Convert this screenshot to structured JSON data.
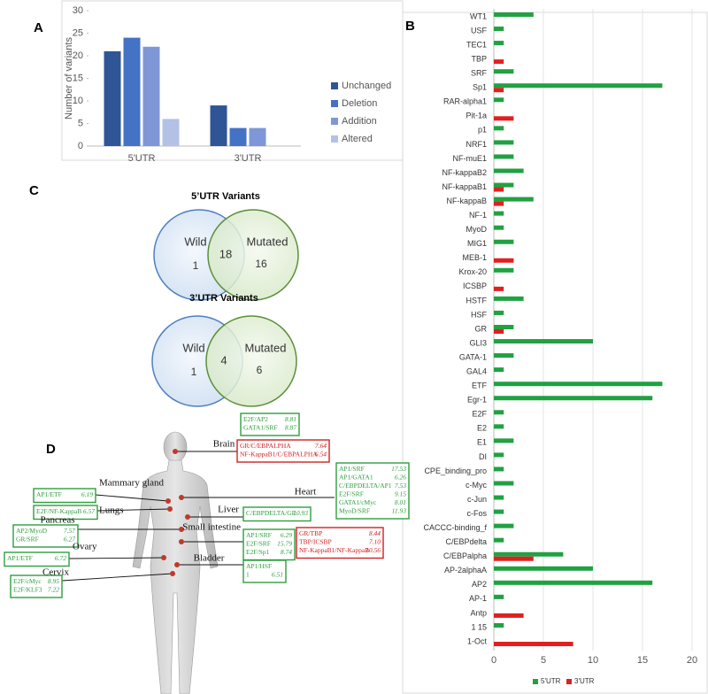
{
  "panel_labels": [
    "A",
    "B",
    "C",
    "D"
  ],
  "chart_data": [
    {
      "type": "bar",
      "y_label": "Number of variants",
      "categories": [
        "5'UTR",
        "3'UTR"
      ],
      "series": [
        {
          "name": "Unchanged",
          "color": "#2f5597",
          "values": [
            21,
            9
          ]
        },
        {
          "name": "Deletion",
          "color": "#4472c4",
          "values": [
            24,
            4
          ]
        },
        {
          "name": "Addition",
          "color": "#7f97d6",
          "values": [
            22,
            4
          ]
        },
        {
          "name": "Altered",
          "color": "#b4c1e6",
          "values": [
            6,
            null
          ]
        }
      ],
      "ylim": [
        0,
        30
      ],
      "yticks": [
        0,
        5,
        10,
        15,
        20,
        25,
        30
      ]
    },
    {
      "type": "hbar",
      "categories": [
        "WT1",
        "USF",
        "TEC1",
        "TBP",
        "SRF",
        "Sp1",
        "RAR-alpha1",
        "Pit-1a",
        "p1",
        "NRF1",
        "NF-muE1",
        "NF-kappaB2",
        "NF-kappaB1",
        "NF-kappaB",
        "NF-1",
        "MyoD",
        "MIG1",
        "MEB-1",
        "Krox-20",
        "ICSBP",
        "HSTF",
        "HSF",
        "GR",
        "GLI3",
        "GATA-1",
        "GAL4",
        "ETF",
        "Egr-1",
        "E2F",
        "E2",
        "E1",
        "DI",
        "CPE_binding_pro",
        "c-Myc",
        "c-Jun",
        "c-Fos",
        "CACCC-binding_f",
        "C/EBPdelta",
        "C/EBPalpha",
        "AP-2alphaA",
        "AP2",
        "AP-1",
        "Antp",
        "1 15",
        "1-Oct"
      ],
      "series": [
        {
          "name": "5'UTR",
          "color": "#21a142",
          "values": [
            4,
            1,
            1,
            null,
            2,
            17,
            1,
            null,
            1,
            2,
            2,
            3,
            2,
            4,
            1,
            1,
            2,
            null,
            2,
            null,
            3,
            1,
            2,
            10,
            2,
            1,
            17,
            16,
            1,
            1,
            2,
            1,
            1,
            2,
            1,
            1,
            2,
            1,
            7,
            10,
            16,
            1,
            null,
            1,
            null
          ]
        },
        {
          "name": "3'UTR",
          "color": "#e02020",
          "values": [
            null,
            null,
            null,
            1,
            null,
            1,
            null,
            2,
            null,
            null,
            null,
            null,
            1,
            1,
            null,
            null,
            null,
            2,
            null,
            1,
            null,
            null,
            1,
            null,
            null,
            null,
            null,
            null,
            null,
            null,
            null,
            null,
            null,
            null,
            null,
            null,
            null,
            null,
            4,
            null,
            null,
            null,
            3,
            null,
            8
          ]
        }
      ],
      "xlim": [
        0,
        20
      ],
      "xticks": [
        0,
        5,
        10,
        15,
        20
      ],
      "grid": true
    }
  ],
  "venn": [
    {
      "title": "5’UTR Variants",
      "left_label": "Wild",
      "right_label": "Mutated",
      "left_only": 1,
      "both": 18,
      "right_only": 16
    },
    {
      "title": "3’UTR Variants",
      "left_label": "Wild",
      "right_label": "Mutated",
      "left_only": 1,
      "both": 4,
      "right_only": 6
    }
  ],
  "body_map": {
    "organs": [
      {
        "name": "Brain",
        "boxes": [
          {
            "color": "#2e9e3e",
            "rows": [
              {
                "name": "E2F/AP2",
                "score": "8.81"
              },
              {
                "name": "GATA1/SRF",
                "score": "8.87"
              }
            ]
          },
          {
            "color": "#d42020",
            "rows": [
              {
                "name": "GR/C/EBPALPHA",
                "score": "7.64"
              },
              {
                "name": "NF-KappaB1/C/EBPALPHA",
                "score": "6.54"
              }
            ]
          }
        ]
      },
      {
        "name": "Heart",
        "boxes": [
          {
            "color": "#2e9e3e",
            "rows": [
              {
                "name": "AP1/SRF",
                "score": "17.53"
              },
              {
                "name": "AP1/GATA1",
                "score": "6.26"
              },
              {
                "name": "C/EBPDELTA/AP1",
                "score": "7.53"
              },
              {
                "name": "E2F/SRF",
                "score": "9.15"
              },
              {
                "name": "GATA1/cMyc",
                "score": "8.01"
              },
              {
                "name": "MyoD/SRF",
                "score": "11.93"
              }
            ]
          }
        ]
      },
      {
        "name": "Mammary gland",
        "boxes": [
          {
            "color": "#2e9e3e",
            "rows": [
              {
                "name": "AP1/ETF",
                "score": "6.19"
              }
            ]
          }
        ]
      },
      {
        "name": "Lungs",
        "boxes": [
          {
            "color": "#2e9e3e",
            "rows": [
              {
                "name": "E2F/NF-KappaB",
                "score": "6.57"
              }
            ]
          }
        ]
      },
      {
        "name": "Liver",
        "boxes": [
          {
            "color": "#2e9e3e",
            "rows": [
              {
                "name": "C/EBPDELTA/GR",
                "score": "10.93"
              }
            ]
          }
        ]
      },
      {
        "name": "Pancreas",
        "boxes": [
          {
            "color": "#2e9e3e",
            "rows": [
              {
                "name": "AP2/MyoD",
                "score": "7.57"
              },
              {
                "name": "GR/SRF",
                "score": "6.27"
              }
            ]
          }
        ]
      },
      {
        "name": "Small intestine",
        "boxes": [
          {
            "color": "#2e9e3e",
            "rows": [
              {
                "name": "AP1/SRF",
                "score": "6.29"
              },
              {
                "name": "E2F/SRF",
                "score": "15.79"
              },
              {
                "name": "E2F/Sp1",
                "score": "8.74"
              }
            ]
          },
          {
            "color": "#d42020",
            "rows": [
              {
                "name": "GR/TBP",
                "score": "8.44"
              },
              {
                "name": "TBP/ICSBP",
                "score": "7.10"
              },
              {
                "name": "NF-KappaB1/NF-KappaB",
                "score": "10.56"
              }
            ]
          }
        ]
      },
      {
        "name": "Ovary",
        "boxes": [
          {
            "color": "#2e9e3e",
            "rows": [
              {
                "name": "AP1/ETF",
                "score": "6.72"
              }
            ]
          }
        ]
      },
      {
        "name": "Bladder",
        "boxes": [
          {
            "color": "#2e9e3e",
            "rows": [
              {
                "name": "AP1/HSF"
              },
              {
                "name": "1",
                "score": "6.51"
              }
            ]
          }
        ]
      },
      {
        "name": "Cervix",
        "boxes": [
          {
            "color": "#2e9e3e",
            "rows": [
              {
                "name": "E2F/cMyc",
                "score": "8.95"
              },
              {
                "name": "E2F/KLF3",
                "score": "7.22"
              }
            ]
          }
        ]
      }
    ]
  }
}
